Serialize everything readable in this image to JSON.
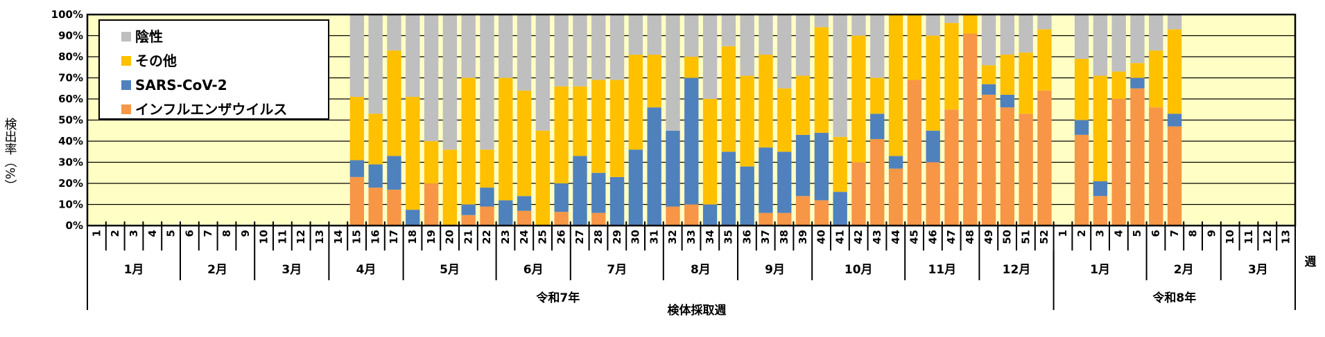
{
  "chart_data": {
    "type": "bar",
    "stacked": true,
    "ylabel": "検出率（%）",
    "xlabel": "検体採取週",
    "x_unit_label": "週",
    "ylim": [
      0,
      100
    ],
    "yticks": [
      "0%",
      "10%",
      "20%",
      "30%",
      "40%",
      "50%",
      "60%",
      "70%",
      "80%",
      "90%",
      "100%"
    ],
    "grid": true,
    "legend_position": "top-left",
    "plot_background": "#FFFFC5",
    "legend": [
      {
        "name": "陰性",
        "color": "#BFBFBF"
      },
      {
        "name": "その他",
        "color": "#FFC000"
      },
      {
        "name": "SARS-CoV-2",
        "color": "#4F81BD"
      },
      {
        "name": "インフルエンザウイルス",
        "color": "#F79646"
      }
    ],
    "years": [
      {
        "label": "令和7年",
        "months": [
          {
            "label": "1月",
            "weeks": [
              "1",
              "2",
              "3",
              "4",
              "5"
            ]
          },
          {
            "label": "2月",
            "weeks": [
              "6",
              "7",
              "8",
              "9"
            ]
          },
          {
            "label": "3月",
            "weeks": [
              "10",
              "11",
              "12",
              "13"
            ]
          },
          {
            "label": "4月",
            "weeks": [
              "14",
              "15",
              "16",
              "17"
            ]
          },
          {
            "label": "5月",
            "weeks": [
              "18",
              "19",
              "20",
              "21",
              "22"
            ]
          },
          {
            "label": "6月",
            "weeks": [
              "23",
              "24",
              "25",
              "26"
            ]
          },
          {
            "label": "7月",
            "weeks": [
              "27",
              "28",
              "29",
              "30",
              "31"
            ]
          },
          {
            "label": "8月",
            "weeks": [
              "32",
              "33",
              "34",
              "35"
            ]
          },
          {
            "label": "9月",
            "weeks": [
              "36",
              "37",
              "38",
              "39"
            ]
          },
          {
            "label": "10月",
            "weeks": [
              "40",
              "41",
              "42",
              "43",
              "44"
            ]
          },
          {
            "label": "11月",
            "weeks": [
              "45",
              "46",
              "47",
              "48"
            ]
          },
          {
            "label": "12月",
            "weeks": [
              "49",
              "50",
              "51",
              "52"
            ]
          }
        ]
      },
      {
        "label": "令和8年",
        "months": [
          {
            "label": "1月",
            "weeks": [
              "1",
              "2",
              "3",
              "4",
              "5"
            ]
          },
          {
            "label": "2月",
            "weeks": [
              "6",
              "7",
              "8",
              "9"
            ]
          },
          {
            "label": "3月",
            "weeks": [
              "10",
              "11",
              "12",
              "13"
            ]
          }
        ]
      }
    ],
    "series_order": [
      "インフルエンザウイルス",
      "SARS-CoV-2",
      "その他",
      "陰性"
    ],
    "bars": [
      {
        "year": "令和7年",
        "week": "15",
        "values": [
          23,
          8,
          30,
          39
        ]
      },
      {
        "year": "令和7年",
        "week": "16",
        "values": [
          18,
          11,
          24,
          47
        ]
      },
      {
        "year": "令和7年",
        "week": "17",
        "values": [
          17,
          16,
          50,
          17
        ]
      },
      {
        "year": "令和7年",
        "week": "18",
        "values": [
          0,
          7.5,
          53.5,
          39
        ]
      },
      {
        "year": "令和7年",
        "week": "19",
        "values": [
          20,
          0,
          20,
          60
        ]
      },
      {
        "year": "令和7年",
        "week": "20",
        "values": [
          0,
          0,
          36,
          64
        ]
      },
      {
        "year": "令和7年",
        "week": "21",
        "values": [
          5,
          5,
          60,
          30
        ]
      },
      {
        "year": "令和7年",
        "week": "22",
        "values": [
          9,
          9,
          18,
          64
        ]
      },
      {
        "year": "令和7年",
        "week": "23",
        "values": [
          0,
          12,
          58,
          30
        ]
      },
      {
        "year": "令和7年",
        "week": "24",
        "values": [
          7,
          7,
          50,
          36
        ]
      },
      {
        "year": "令和7年",
        "week": "25",
        "values": [
          0,
          0,
          45,
          55
        ]
      },
      {
        "year": "令和7年",
        "week": "26",
        "values": [
          6.5,
          13.5,
          46,
          34
        ]
      },
      {
        "year": "令和7年",
        "week": "27",
        "values": [
          0,
          33,
          33,
          34
        ]
      },
      {
        "year": "令和7年",
        "week": "28",
        "values": [
          6,
          19,
          44,
          31
        ]
      },
      {
        "year": "令和7年",
        "week": "29",
        "values": [
          0,
          23,
          46,
          31
        ]
      },
      {
        "year": "令和7年",
        "week": "30",
        "values": [
          0,
          36,
          45,
          19
        ]
      },
      {
        "year": "令和7年",
        "week": "31",
        "values": [
          0,
          56,
          25,
          19
        ]
      },
      {
        "year": "令和7年",
        "week": "32",
        "values": [
          9,
          36,
          0,
          55
        ]
      },
      {
        "year": "令和7年",
        "week": "33",
        "values": [
          10,
          60,
          10,
          20
        ]
      },
      {
        "year": "令和7年",
        "week": "34",
        "values": [
          0,
          10,
          50,
          40
        ]
      },
      {
        "year": "令和7年",
        "week": "35",
        "values": [
          0,
          35,
          50,
          15
        ]
      },
      {
        "year": "令和7年",
        "week": "36",
        "values": [
          0,
          28,
          43,
          29
        ]
      },
      {
        "year": "令和7年",
        "week": "37",
        "values": [
          6,
          31,
          44,
          19
        ]
      },
      {
        "year": "令和7年",
        "week": "38",
        "values": [
          6,
          29,
          30,
          35
        ]
      },
      {
        "year": "令和7年",
        "week": "39",
        "values": [
          14,
          29,
          28,
          29
        ]
      },
      {
        "year": "令和7年",
        "week": "40",
        "values": [
          12,
          32,
          50,
          6
        ]
      },
      {
        "year": "令和7年",
        "week": "41",
        "values": [
          0,
          16,
          26,
          58
        ]
      },
      {
        "year": "令和7年",
        "week": "42",
        "values": [
          30,
          0,
          60,
          10
        ]
      },
      {
        "year": "令和7年",
        "week": "43",
        "values": [
          41,
          12,
          17,
          30
        ]
      },
      {
        "year": "令和7年",
        "week": "44",
        "values": [
          27,
          6,
          67,
          0
        ]
      },
      {
        "year": "令和7年",
        "week": "45",
        "values": [
          69,
          0,
          31,
          0
        ]
      },
      {
        "year": "令和7年",
        "week": "46",
        "values": [
          30,
          15,
          45,
          10
        ]
      },
      {
        "year": "令和7年",
        "week": "47",
        "values": [
          55,
          0,
          41,
          4
        ]
      },
      {
        "year": "令和7年",
        "week": "48",
        "values": [
          91,
          0,
          9,
          0
        ]
      },
      {
        "year": "令和7年",
        "week": "49",
        "values": [
          62,
          5,
          9,
          24
        ]
      },
      {
        "year": "令和7年",
        "week": "50",
        "values": [
          56,
          6,
          19,
          19
        ]
      },
      {
        "year": "令和7年",
        "week": "51",
        "values": [
          53,
          0,
          29,
          18
        ]
      },
      {
        "year": "令和7年",
        "week": "52",
        "values": [
          64,
          0,
          29,
          7
        ]
      },
      {
        "year": "令和8年",
        "week": "2",
        "values": [
          43,
          7,
          29,
          21
        ]
      },
      {
        "year": "令和8年",
        "week": "3",
        "values": [
          14,
          7,
          50,
          29
        ]
      },
      {
        "year": "令和8年",
        "week": "4",
        "values": [
          60,
          0,
          13,
          27
        ]
      },
      {
        "year": "令和8年",
        "week": "5",
        "values": [
          65,
          5,
          7,
          23
        ]
      },
      {
        "year": "令和8年",
        "week": "6",
        "values": [
          56,
          0,
          27,
          17
        ]
      },
      {
        "year": "令和8年",
        "week": "7",
        "values": [
          47,
          6,
          40,
          7
        ]
      }
    ]
  }
}
